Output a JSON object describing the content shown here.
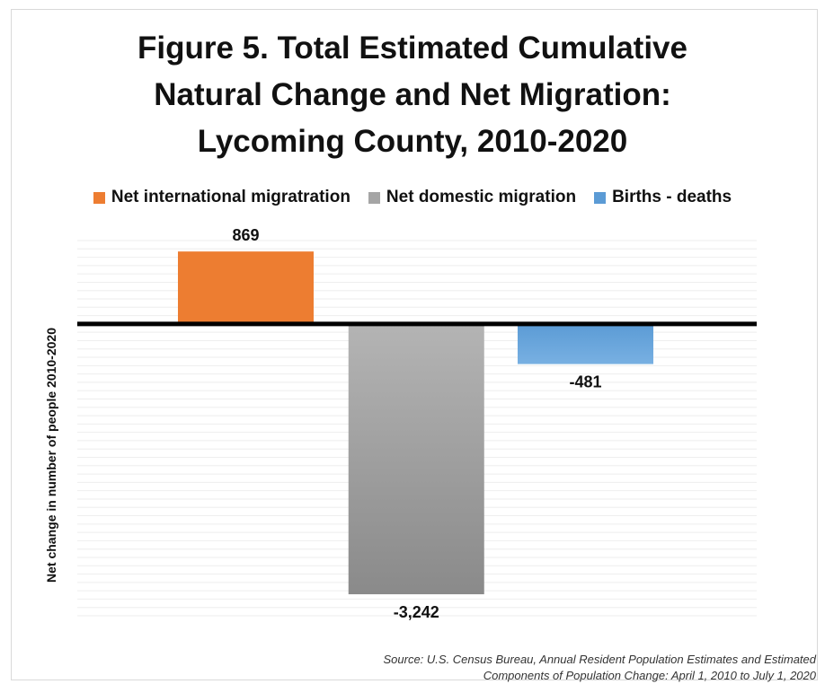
{
  "chart_data": {
    "type": "bar",
    "title": "Figure 5. Total Estimated Cumulative\nNatural Change and Net Migration:\nLycoming County, 2010-2020",
    "ylabel": "Net change in number of people 2010-2020",
    "xlabel": "",
    "ylim": [
      -3500,
      1000
    ],
    "grid": true,
    "legend_position": "top",
    "series": [
      {
        "name": "Net international migratration",
        "value": 869,
        "label": "869",
        "color": "#ED7D31"
      },
      {
        "name": "Net domestic migration",
        "value": -3242,
        "label": "-3,242",
        "color": "#A5A5A5"
      },
      {
        "name": "Births  - deaths",
        "value": -481,
        "label": "-481",
        "color": "#5B9BD5"
      }
    ]
  },
  "source_note": "Source: U.S. Census Bureau, Annual Resident Population Estimates and Estimated\nComponents of Population Change: April 1, 2010 to July 1, 2020"
}
